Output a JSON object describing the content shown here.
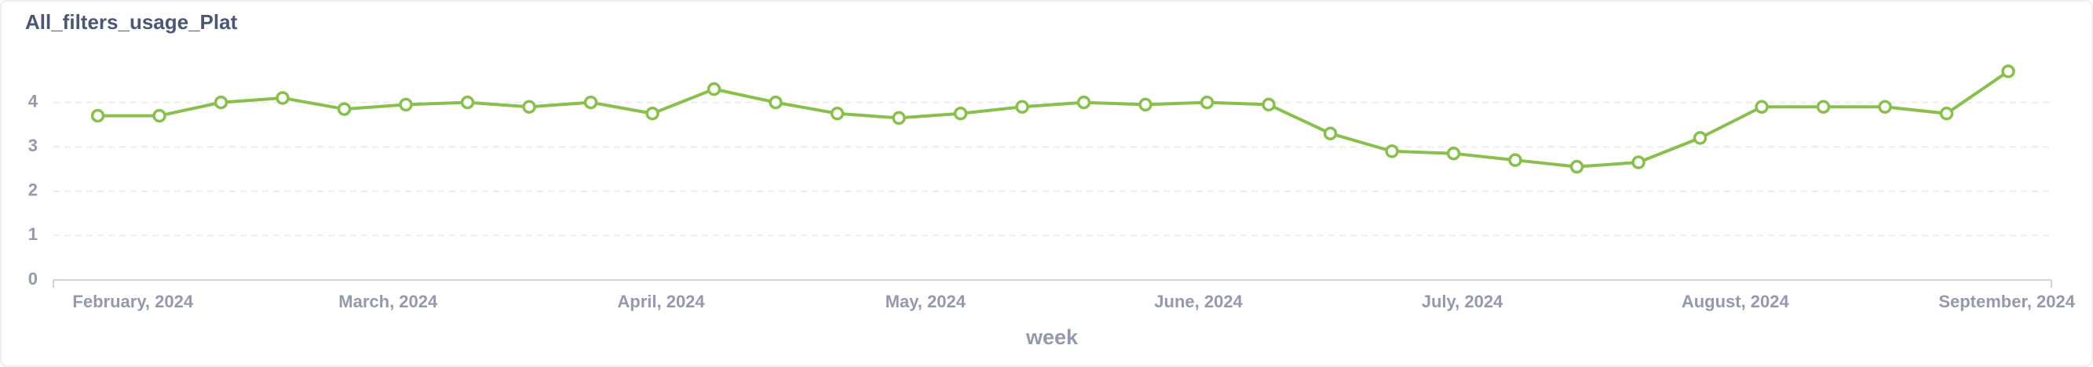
{
  "chart_data": {
    "type": "line",
    "title": "All_filters_usage_Plat",
    "x_label": "week",
    "categories": [
      null,
      null,
      null,
      null,
      null,
      null,
      null,
      null,
      null,
      null,
      null,
      null,
      null,
      null,
      null,
      null,
      null,
      null,
      null,
      null,
      null,
      null,
      null,
      null,
      null,
      null,
      null,
      null,
      null,
      null,
      null,
      null
    ],
    "series": [
      {
        "color": "#88bf4d",
        "values": [
          3.7,
          3.7,
          4.0,
          4.1,
          3.85,
          3.95,
          4.0,
          3.9,
          4.0,
          3.75,
          4.3,
          4.0,
          3.75,
          3.65,
          3.75,
          3.9,
          4.0,
          3.95,
          4.0,
          3.95,
          3.3,
          2.9,
          2.85,
          2.7,
          2.55,
          2.65,
          3.2,
          3.9,
          3.9,
          3.9,
          3.75,
          4.7
        ]
      }
    ],
    "xlim": [
      -0.72,
      31.7
    ],
    "xticks": [
      {
        "value": 0.57,
        "label": "February, 2024"
      },
      {
        "value": 4.71,
        "label": "March, 2024"
      },
      {
        "value": 9.14,
        "label": "April, 2024"
      },
      {
        "value": 13.43,
        "label": "May, 2024"
      },
      {
        "value": 17.86,
        "label": "June, 2024"
      },
      {
        "value": 22.14,
        "label": "July, 2024"
      },
      {
        "value": 26.57,
        "label": "August, 2024"
      },
      {
        "value": 31,
        "label": "September, 2024"
      }
    ],
    "ylim": [
      0,
      5
    ],
    "yticks": [
      0,
      1,
      2,
      3,
      4
    ],
    "grid": true
  }
}
